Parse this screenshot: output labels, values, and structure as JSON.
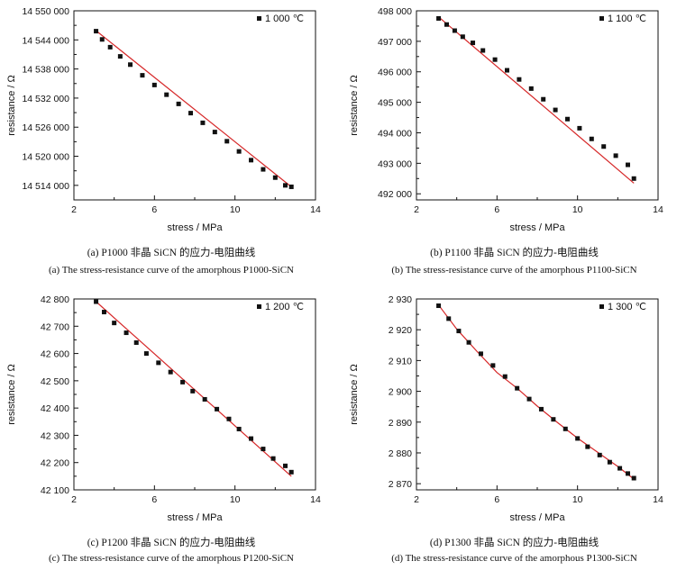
{
  "chart_data": [
    {
      "type": "scatter",
      "panel": "a",
      "xlabel": "stress / MPa",
      "ylabel": "resistance / Ω",
      "xlim": [
        2,
        14
      ],
      "ylim": [
        14511000,
        14550000
      ],
      "xticks": [
        2,
        6,
        10,
        14
      ],
      "yticks": [
        14514000,
        14520000,
        14526000,
        14532000,
        14538000,
        14544000,
        14550000
      ],
      "xtick_labels": [
        "2",
        "6",
        "10",
        "14"
      ],
      "ytick_labels": [
        "14 514 000",
        "14 520 000",
        "14 526 000",
        "14 532 000",
        "14 538 000",
        "14 544 000",
        "14 550 000"
      ],
      "legend": "1 000 ℃",
      "legend_position": "top-right",
      "series": [
        {
          "name": "1 000 ℃",
          "x": [
            3.1,
            3.4,
            3.8,
            4.3,
            4.8,
            5.4,
            6.0,
            6.6,
            7.2,
            7.8,
            8.4,
            9.0,
            9.6,
            10.2,
            10.8,
            11.4,
            12.0,
            12.5,
            12.8
          ],
          "y": [
            14545800,
            14544100,
            14542500,
            14540600,
            14538900,
            14536700,
            14534700,
            14532700,
            14530800,
            14528900,
            14526900,
            14525000,
            14523100,
            14521000,
            14519200,
            14517300,
            14515600,
            14514000,
            14513700
          ]
        }
      ],
      "fit": {
        "x": [
          3.1,
          12.8
        ],
        "y": [
          14545900,
          14513700
        ]
      }
    },
    {
      "type": "scatter",
      "panel": "b",
      "xlabel": "stress / MPa",
      "ylabel": "resistance / Ω",
      "xlim": [
        2,
        14
      ],
      "ylim": [
        491800,
        498000
      ],
      "xticks": [
        2,
        6,
        10,
        14
      ],
      "yticks": [
        492000,
        493000,
        494000,
        495000,
        496000,
        497000,
        498000
      ],
      "xtick_labels": [
        "2",
        "6",
        "10",
        "14"
      ],
      "ytick_labels": [
        "492 000",
        "493 000",
        "494 000",
        "495 000",
        "496 000",
        "497 000",
        "498 000"
      ],
      "legend": "1 100 ℃",
      "legend_position": "top-right",
      "series": [
        {
          "name": "1 100 ℃",
          "x": [
            3.1,
            3.5,
            3.9,
            4.3,
            4.8,
            5.3,
            5.9,
            6.5,
            7.1,
            7.7,
            8.3,
            8.9,
            9.5,
            10.1,
            10.7,
            11.3,
            11.9,
            12.5,
            12.8
          ],
          "y": [
            497750,
            497550,
            497350,
            497150,
            496950,
            496700,
            496400,
            496050,
            495750,
            495450,
            495100,
            494750,
            494450,
            494150,
            493800,
            493550,
            493250,
            492950,
            492500
          ]
        }
      ],
      "fit": {
        "x": [
          3.1,
          12.8
        ],
        "y": [
          497800,
          492350
        ]
      }
    },
    {
      "type": "scatter",
      "panel": "c",
      "xlabel": "stress / MPa",
      "ylabel": "resistance / Ω",
      "xlim": [
        2,
        14
      ],
      "ylim": [
        42100,
        42800
      ],
      "xticks": [
        2,
        6,
        10,
        14
      ],
      "yticks": [
        42100,
        42200,
        42300,
        42400,
        42500,
        42600,
        42700,
        42800
      ],
      "xtick_labels": [
        "2",
        "6",
        "10",
        "14"
      ],
      "ytick_labels": [
        "42 100",
        "42 200",
        "42 300",
        "42 400",
        "42 500",
        "42 600",
        "42 700",
        "42 800"
      ],
      "legend": "1 200 ℃",
      "legend_position": "top-right",
      "series": [
        {
          "name": "1 200 ℃",
          "x": [
            3.1,
            3.5,
            4.0,
            4.6,
            5.1,
            5.6,
            6.2,
            6.8,
            7.4,
            7.9,
            8.5,
            9.1,
            9.7,
            10.2,
            10.8,
            11.4,
            11.9,
            12.5,
            12.8
          ],
          "y": [
            42790,
            42752,
            42712,
            42676,
            42640,
            42600,
            42566,
            42532,
            42495,
            42462,
            42432,
            42396,
            42360,
            42323,
            42288,
            42250,
            42215,
            42188,
            42165
          ]
        }
      ],
      "fit": {
        "x": [
          3.1,
          12.8
        ],
        "y": [
          42790,
          42150
        ]
      }
    },
    {
      "type": "scatter",
      "panel": "d",
      "xlabel": "stress / MPa",
      "ylabel": "resistance / Ω",
      "xlim": [
        2,
        14
      ],
      "ylim": [
        2868,
        2930
      ],
      "xticks": [
        2,
        6,
        10,
        14
      ],
      "yticks": [
        2870,
        2880,
        2890,
        2900,
        2910,
        2920,
        2930
      ],
      "xtick_labels": [
        "2",
        "6",
        "10",
        "14"
      ],
      "ytick_labels": [
        "2 870",
        "2 880",
        "2 890",
        "2 900",
        "2 910",
        "2 920",
        "2 930"
      ],
      "legend": "1 300 ℃",
      "legend_position": "top-right",
      "series": [
        {
          "name": "1 300 ℃",
          "x": [
            3.1,
            3.6,
            4.1,
            4.6,
            5.2,
            5.8,
            6.4,
            7.0,
            7.6,
            8.2,
            8.8,
            9.4,
            10.0,
            10.5,
            11.1,
            11.6,
            12.1,
            12.5,
            12.8
          ],
          "y": [
            2927.8,
            2923.6,
            2919.6,
            2915.9,
            2912.2,
            2908.4,
            2904.8,
            2901.0,
            2897.5,
            2894.2,
            2890.9,
            2887.8,
            2884.7,
            2882.0,
            2879.3,
            2877.0,
            2875.0,
            2873.3,
            2871.8
          ]
        }
      ],
      "fit_curve": {
        "x": [
          3.1,
          4.0,
          5.0,
          6.0,
          7.0,
          8.0,
          9.0,
          10.0,
          11.0,
          12.0,
          12.8
        ],
        "y": [
          2928.0,
          2920.2,
          2913.0,
          2906.1,
          2901.0,
          2895.2,
          2889.9,
          2884.8,
          2880.2,
          2875.6,
          2871.5
        ]
      }
    }
  ],
  "captions": {
    "a": {
      "cn": "(a) P1000 非晶 SiCN 的应力-电阻曲线",
      "en": "(a) The stress-resistance curve of the amorphous P1000-SiCN"
    },
    "b": {
      "cn": "(b) P1100 非晶 SiCN 的应力-电阻曲线",
      "en": "(b) The stress-resistance curve of the amorphous P1100-SiCN"
    },
    "c": {
      "cn": "(c) P1200 非晶 SiCN 的应力-电阻曲线",
      "en": "(c) The stress-resistance curve of the amorphous P1200-SiCN"
    },
    "d": {
      "cn": "(d) P1300 非晶 SiCN 的应力-电阻曲线",
      "en": "(d) The stress-resistance curve of the amorphous P1300-SiCN"
    }
  },
  "colors": {
    "fit_line": "#d62728",
    "marker": "#111111",
    "axis": "#111111"
  }
}
